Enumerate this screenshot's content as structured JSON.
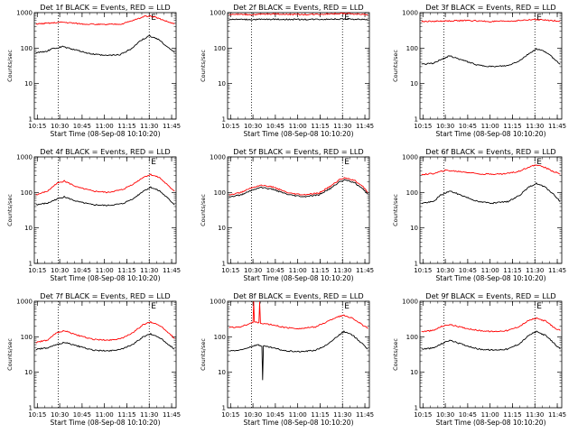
{
  "colors": {
    "events": "#000000",
    "lld": "#ff0000",
    "axes": "#000000",
    "background": "#ffffff"
  },
  "chart_data": [
    {
      "type": "line",
      "title": "Det 1f BLACK = Events, RED = LLD",
      "xlabel": "Start Time (08-Sep-08 10:10:20)",
      "ylabel": "Counts/sec",
      "yscale": "log",
      "ylim": [
        1,
        1000
      ],
      "xlim": [
        "10:13",
        "11:48"
      ],
      "x_ticks": [
        "10:15",
        "10:30",
        "10:45",
        "11:00",
        "11:15",
        "11:30",
        "11:45"
      ],
      "y_ticks": [
        "1",
        "10",
        "100",
        "1000"
      ],
      "markers": [
        {
          "x": "10:29",
          "label": ""
        },
        {
          "x": "11:30",
          "label": "E"
        }
      ],
      "series": [
        {
          "key": "events",
          "color": "#000000",
          "x": [
            "10:14",
            "10:20",
            "10:25",
            "10:32",
            "10:40",
            "10:50",
            "11:00",
            "11:10",
            "11:18",
            "11:24",
            "11:30",
            "11:36",
            "11:42",
            "11:47"
          ],
          "y": [
            75,
            78,
            95,
            110,
            90,
            70,
            62,
            65,
            95,
            160,
            220,
            180,
            110,
            75
          ]
        },
        {
          "key": "lld",
          "color": "#ff0000",
          "x": [
            "10:14",
            "10:22",
            "10:32",
            "10:45",
            "11:00",
            "11:12",
            "11:20",
            "11:26",
            "11:30",
            "11:36",
            "11:42",
            "11:47"
          ],
          "y": [
            480,
            500,
            540,
            480,
            460,
            480,
            620,
            760,
            820,
            700,
            560,
            480
          ]
        }
      ]
    },
    {
      "type": "line",
      "title": "Det 2f BLACK = Events, RED = LLD",
      "xlabel": "Start Time (08-Sep-08 10:10:20)",
      "ylabel": "Counts/sec",
      "yscale": "log",
      "ylim": [
        1,
        1000
      ],
      "xlim": [
        "10:13",
        "11:48"
      ],
      "x_ticks": [
        "10:15",
        "10:30",
        "10:45",
        "11:00",
        "11:15",
        "11:30",
        "11:45"
      ],
      "y_ticks": [
        "1",
        "10",
        "100",
        "1000"
      ],
      "markers": [
        {
          "x": "10:29",
          "label": ""
        },
        {
          "x": "11:30",
          "label": "E"
        }
      ],
      "series": [
        {
          "key": "events",
          "color": "#000000",
          "x": [
            "10:14",
            "10:30",
            "10:45",
            "11:00",
            "11:15",
            "11:30",
            "11:47"
          ],
          "y": [
            650,
            640,
            650,
            640,
            650,
            660,
            640
          ]
        },
        {
          "key": "lld",
          "color": "#ff0000",
          "x": [
            "10:14",
            "10:30",
            "10:45",
            "11:00",
            "11:15",
            "11:30",
            "11:47"
          ],
          "y": [
            900,
            880,
            920,
            880,
            900,
            950,
            880
          ]
        }
      ]
    },
    {
      "type": "line",
      "title": "Det 3f BLACK = Events, RED = LLD",
      "xlabel": "Start Time (08-Sep-08 10:10:20)",
      "ylabel": "Counts/sec",
      "yscale": "log",
      "ylim": [
        1,
        1000
      ],
      "xlim": [
        "10:13",
        "11:48"
      ],
      "x_ticks": [
        "10:15",
        "10:30",
        "10:45",
        "11:00",
        "11:15",
        "11:30",
        "11:45"
      ],
      "y_ticks": [
        "1",
        "10",
        "100",
        "1000"
      ],
      "markers": [
        {
          "x": "10:29",
          "label": ""
        },
        {
          "x": "11:30",
          "label": "E"
        }
      ],
      "series": [
        {
          "key": "events",
          "color": "#000000",
          "x": [
            "10:14",
            "10:22",
            "10:27",
            "10:33",
            "10:42",
            "10:52",
            "11:02",
            "11:12",
            "11:20",
            "11:26",
            "11:31",
            "11:37",
            "11:43",
            "11:47"
          ],
          "y": [
            35,
            37,
            48,
            60,
            45,
            33,
            30,
            32,
            45,
            70,
            95,
            80,
            50,
            35
          ]
        },
        {
          "key": "lld",
          "color": "#ff0000",
          "x": [
            "10:14",
            "10:30",
            "10:45",
            "11:00",
            "11:15",
            "11:30",
            "11:47"
          ],
          "y": [
            560,
            580,
            600,
            560,
            580,
            640,
            580
          ]
        }
      ]
    },
    {
      "type": "line",
      "title": "Det 4f BLACK = Events, RED = LLD",
      "xlabel": "Start Time (08-Sep-08 10:10:20)",
      "ylabel": "Counts/sec",
      "yscale": "log",
      "ylim": [
        1,
        1000
      ],
      "xlim": [
        "10:13",
        "11:48"
      ],
      "x_ticks": [
        "10:15",
        "10:30",
        "10:45",
        "11:00",
        "11:15",
        "11:30",
        "11:45"
      ],
      "y_ticks": [
        "1",
        "10",
        "100",
        "1000"
      ],
      "markers": [
        {
          "x": "10:29",
          "label": ""
        },
        {
          "x": "11:30",
          "label": "E"
        }
      ],
      "series": [
        {
          "key": "events",
          "color": "#000000",
          "x": [
            "10:14",
            "10:22",
            "10:28",
            "10:33",
            "10:42",
            "10:52",
            "11:02",
            "11:12",
            "11:20",
            "11:26",
            "11:31",
            "11:37",
            "11:43",
            "11:47"
          ],
          "y": [
            45,
            50,
            65,
            75,
            55,
            45,
            43,
            48,
            70,
            110,
            140,
            110,
            65,
            45
          ]
        },
        {
          "key": "lld",
          "color": "#ff0000",
          "x": [
            "10:14",
            "10:22",
            "10:28",
            "10:33",
            "10:42",
            "10:52",
            "11:02",
            "11:12",
            "11:20",
            "11:26",
            "11:31",
            "11:37",
            "11:43",
            "11:47"
          ],
          "y": [
            85,
            110,
            180,
            210,
            140,
            110,
            100,
            120,
            180,
            270,
            320,
            260,
            150,
            110
          ]
        }
      ]
    },
    {
      "type": "line",
      "title": "Det 5f BLACK = Events, RED = LLD",
      "xlabel": "Start Time (08-Sep-08 10:10:20)",
      "ylabel": "Counts/sec",
      "yscale": "log",
      "ylim": [
        1,
        1000
      ],
      "xlim": [
        "10:13",
        "11:48"
      ],
      "x_ticks": [
        "10:15",
        "10:30",
        "10:45",
        "11:00",
        "11:15",
        "11:30",
        "11:45"
      ],
      "y_ticks": [
        "1",
        "10",
        "100",
        "1000"
      ],
      "markers": [
        {
          "x": "10:29",
          "label": ""
        },
        {
          "x": "11:30",
          "label": "E"
        }
      ],
      "series": [
        {
          "key": "events",
          "color": "#000000",
          "x": [
            "10:14",
            "10:22",
            "10:28",
            "10:35",
            "10:44",
            "10:54",
            "11:04",
            "11:14",
            "11:22",
            "11:28",
            "11:32",
            "11:38",
            "11:44",
            "11:47"
          ],
          "y": [
            75,
            85,
            110,
            140,
            120,
            85,
            75,
            85,
            130,
            200,
            230,
            190,
            120,
            90
          ]
        },
        {
          "key": "lld",
          "color": "#ff0000",
          "x": [
            "10:14",
            "10:22",
            "10:28",
            "10:35",
            "10:44",
            "10:54",
            "11:04",
            "11:14",
            "11:22",
            "11:28",
            "11:32",
            "11:38",
            "11:44",
            "11:47"
          ],
          "y": [
            85,
            100,
            130,
            160,
            140,
            95,
            85,
            95,
            150,
            230,
            260,
            220,
            140,
            100
          ]
        }
      ]
    },
    {
      "type": "line",
      "title": "Det 6f BLACK = Events, RED = LLD",
      "xlabel": "Start Time (08-Sep-08 10:10:20)",
      "ylabel": "Counts/sec",
      "yscale": "log",
      "ylim": [
        1,
        1000
      ],
      "xlim": [
        "10:13",
        "11:48"
      ],
      "x_ticks": [
        "10:15",
        "10:30",
        "10:45",
        "11:00",
        "11:15",
        "11:30",
        "11:45"
      ],
      "y_ticks": [
        "1",
        "10",
        "100",
        "1000"
      ],
      "markers": [
        {
          "x": "10:29",
          "label": ""
        },
        {
          "x": "11:30",
          "label": "E"
        }
      ],
      "series": [
        {
          "key": "events",
          "color": "#000000",
          "x": [
            "10:14",
            "10:22",
            "10:27",
            "10:33",
            "10:42",
            "10:52",
            "11:02",
            "11:12",
            "11:20",
            "11:26",
            "11:31",
            "11:37",
            "11:43",
            "11:47"
          ],
          "y": [
            50,
            55,
            85,
            110,
            80,
            55,
            50,
            55,
            85,
            140,
            180,
            140,
            85,
            55
          ]
        },
        {
          "key": "lld",
          "color": "#ff0000",
          "x": [
            "10:14",
            "10:22",
            "10:30",
            "10:42",
            "10:55",
            "11:08",
            "11:18",
            "11:26",
            "11:31",
            "11:37",
            "11:43",
            "11:47"
          ],
          "y": [
            320,
            340,
            420,
            380,
            330,
            330,
            380,
            520,
            600,
            500,
            380,
            330
          ]
        }
      ]
    },
    {
      "type": "line",
      "title": "Det 7f BLACK = Events, RED = LLD",
      "xlabel": "Start Time (08-Sep-08 10:10:20)",
      "ylabel": "Counts/sec",
      "yscale": "log",
      "ylim": [
        1,
        1000
      ],
      "xlim": [
        "10:13",
        "11:48"
      ],
      "x_ticks": [
        "10:15",
        "10:30",
        "10:45",
        "11:00",
        "11:15",
        "11:30",
        "11:45"
      ],
      "y_ticks": [
        "1",
        "10",
        "100",
        "1000"
      ],
      "markers": [
        {
          "x": "10:29",
          "label": ""
        },
        {
          "x": "11:30",
          "label": "E"
        }
      ],
      "series": [
        {
          "key": "events",
          "color": "#000000",
          "x": [
            "10:14",
            "10:22",
            "10:28",
            "10:33",
            "10:42",
            "10:52",
            "11:02",
            "11:12",
            "11:20",
            "11:26",
            "11:31",
            "11:37",
            "11:43",
            "11:47"
          ],
          "y": [
            45,
            48,
            60,
            70,
            55,
            42,
            40,
            45,
            65,
            100,
            120,
            95,
            60,
            45
          ]
        },
        {
          "key": "lld",
          "color": "#ff0000",
          "x": [
            "10:14",
            "10:22",
            "10:28",
            "10:33",
            "10:42",
            "10:52",
            "11:02",
            "11:12",
            "11:20",
            "11:26",
            "11:31",
            "11:37",
            "11:43",
            "11:47"
          ],
          "y": [
            70,
            80,
            130,
            150,
            110,
            85,
            80,
            90,
            140,
            220,
            260,
            210,
            130,
            90
          ]
        }
      ]
    },
    {
      "type": "line",
      "title": "Det 8f BLACK = Events, RED = LLD",
      "xlabel": "Start Time (08-Sep-08 10:10:20)",
      "ylabel": "Counts/sec",
      "yscale": "log",
      "ylim": [
        1,
        1000
      ],
      "xlim": [
        "10:13",
        "11:48"
      ],
      "x_ticks": [
        "10:15",
        "10:30",
        "10:45",
        "11:00",
        "11:15",
        "11:30",
        "11:45"
      ],
      "y_ticks": [
        "1",
        "10",
        "100",
        "1000"
      ],
      "markers": [
        {
          "x": "10:29",
          "label": ""
        },
        {
          "x": "11:30",
          "label": "E"
        }
      ],
      "series": [
        {
          "key": "events",
          "color": "#000000",
          "x": [
            "10:14",
            "10:22",
            "10:28",
            "10:33",
            "10:36",
            "10:36.5",
            "10:37",
            "10:42",
            "10:52",
            "11:02",
            "11:12",
            "11:20",
            "11:26",
            "11:31",
            "11:37",
            "11:43",
            "11:47"
          ],
          "y": [
            40,
            42,
            52,
            60,
            55,
            6,
            55,
            50,
            40,
            38,
            42,
            60,
            100,
            140,
            110,
            65,
            45
          ]
        },
        {
          "key": "lld",
          "color": "#ff0000",
          "x": [
            "10:14",
            "10:22",
            "10:28",
            "10:30",
            "10:30.5",
            "10:31",
            "10:34",
            "10:34.5",
            "10:35",
            "10:42",
            "10:52",
            "11:02",
            "11:12",
            "11:20",
            "11:26",
            "11:31",
            "11:37",
            "11:43",
            "11:47"
          ],
          "y": [
            180,
            190,
            240,
            250,
            1000,
            260,
            250,
            1000,
            240,
            220,
            180,
            170,
            190,
            270,
            360,
            400,
            330,
            220,
            170
          ]
        }
      ]
    },
    {
      "type": "line",
      "title": "Det 9f BLACK = Events, RED = LLD",
      "xlabel": "Start Time (08-Sep-08 10:10:20)",
      "ylabel": "Counts/sec",
      "yscale": "log",
      "ylim": [
        1,
        1000
      ],
      "xlim": [
        "10:13",
        "11:48"
      ],
      "x_ticks": [
        "10:15",
        "10:30",
        "10:45",
        "11:00",
        "11:15",
        "11:30",
        "11:45"
      ],
      "y_ticks": [
        "1",
        "10",
        "100",
        "1000"
      ],
      "markers": [
        {
          "x": "10:29",
          "label": ""
        },
        {
          "x": "11:30",
          "label": "E"
        }
      ],
      "series": [
        {
          "key": "events",
          "color": "#000000",
          "x": [
            "10:14",
            "10:22",
            "10:28",
            "10:33",
            "10:42",
            "10:52",
            "11:02",
            "11:12",
            "11:20",
            "11:26",
            "11:31",
            "11:37",
            "11:43",
            "11:47"
          ],
          "y": [
            45,
            48,
            65,
            80,
            60,
            45,
            42,
            45,
            65,
            110,
            140,
            110,
            65,
            45
          ]
        },
        {
          "key": "lld",
          "color": "#ff0000",
          "x": [
            "10:14",
            "10:22",
            "10:28",
            "10:33",
            "10:42",
            "10:52",
            "11:02",
            "11:12",
            "11:20",
            "11:26",
            "11:31",
            "11:37",
            "11:43",
            "11:47"
          ],
          "y": [
            140,
            150,
            200,
            220,
            180,
            150,
            140,
            150,
            200,
            290,
            330,
            280,
            180,
            150
          ]
        }
      ]
    }
  ]
}
